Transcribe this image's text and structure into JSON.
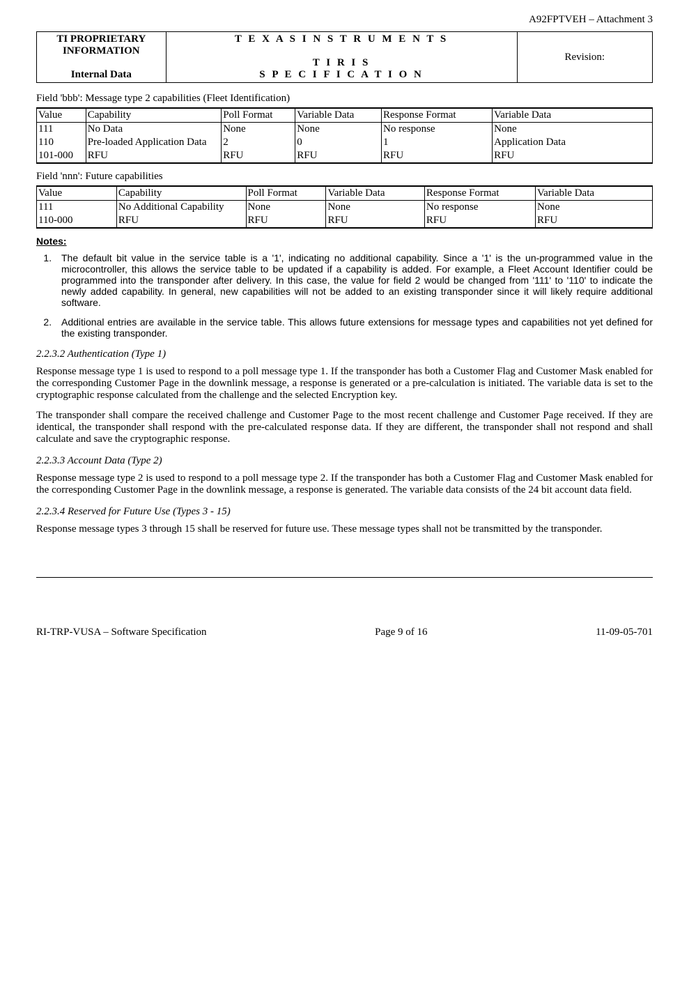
{
  "header": {
    "doc_id": "A92FPTVEH – Attachment 3",
    "left_line1": "TI PROPRIETARY",
    "left_line2": "INFORMATION",
    "left_line3": "Internal Data",
    "center_line1": "T E X A S  I N S T R U M E N T S",
    "center_line2": "T I R I S",
    "center_line3": "S P E C I F I C A T I O N",
    "right_line1": "Revision:"
  },
  "table1": {
    "caption": "Field 'bbb': Message type 2 capabilities (Fleet Identification)",
    "columns": [
      "Value",
      "Capability",
      "Poll Format",
      "Variable Data",
      "Response Format",
      "Variable Data"
    ],
    "col_widths": [
      "8%",
      "22%",
      "12%",
      "14%",
      "18%",
      "26%"
    ],
    "rows": [
      [
        "111",
        "No Data",
        "None",
        "None",
        "No response",
        "None"
      ],
      [
        "110",
        "Pre-loaded Application Data",
        "2",
        "0",
        "1",
        "Application Data"
      ],
      [
        "101-000",
        "RFU",
        "RFU",
        "RFU",
        "RFU",
        "RFU"
      ]
    ]
  },
  "table2": {
    "caption": "Field 'nnn': Future capabilities",
    "columns": [
      "Value",
      "Capability",
      "Poll Format",
      "Variable Data",
      "Response Format",
      "Variable Data"
    ],
    "col_widths": [
      "13%",
      "21%",
      "13%",
      "16%",
      "18%",
      "19%"
    ],
    "rows": [
      [
        "111",
        "No Additional Capability",
        "None",
        "None",
        "No response",
        "None"
      ],
      [
        "110-000",
        "RFU",
        "RFU",
        "RFU",
        "RFU",
        "RFU"
      ]
    ]
  },
  "notes": {
    "title": "Notes:",
    "items": [
      "The default bit value in the service table is a '1', indicating no additional capability.  Since a '1' is the un-programmed value in the microcontroller, this allows the service table to be updated if a capability is added.  For example, a Fleet Account Identifier could be programmed into the transponder after delivery.  In this case, the value for field 2 would be changed from '111' to '110' to indicate the newly added capability.  In general, new capabilities will not be added to an existing transponder since it will likely require additional software.",
      "Additional entries are available in the service table.  This allows future extensions for message types and capabilities not yet defined for the existing transponder."
    ]
  },
  "sections": {
    "s1": {
      "heading": "2.2.3.2 Authentication (Type 1)",
      "paras": [
        "Response message type 1 is used to respond to a poll message type 1. If the transponder has both a Customer Flag and Customer Mask enabled for the corresponding Customer Page in the downlink message, a response is generated or a pre-calculation is initiated. The variable data is set to the cryptographic response calculated from the challenge and the selected Encryption key.",
        "The transponder shall compare the received challenge and Customer Page to the most recent challenge and Customer Page received.  If they are identical, the transponder shall respond with the pre-calculated response data.  If they are different, the transponder shall not respond and shall calculate and save the cryptographic response."
      ]
    },
    "s2": {
      "heading": "2.2.3.3        Account Data (Type 2)",
      "paras": [
        "Response message type 2 is used to respond to a poll message type 2. If the transponder has both a Customer Flag and Customer Mask enabled for the corresponding Customer Page in the downlink message, a response is generated. The variable data consists of the 24 bit account data field."
      ]
    },
    "s3": {
      "heading": "2.2.3.4        Reserved for Future Use (Types 3 - 15)",
      "paras": [
        "Response message types 3 through 15 shall be reserved for future use.  These message types shall not be transmitted by the transponder."
      ]
    }
  },
  "footer": {
    "left": "RI-TRP-VUSA – Software Specification",
    "center": "Page 9 of 16",
    "right": "11-09-05-701"
  }
}
